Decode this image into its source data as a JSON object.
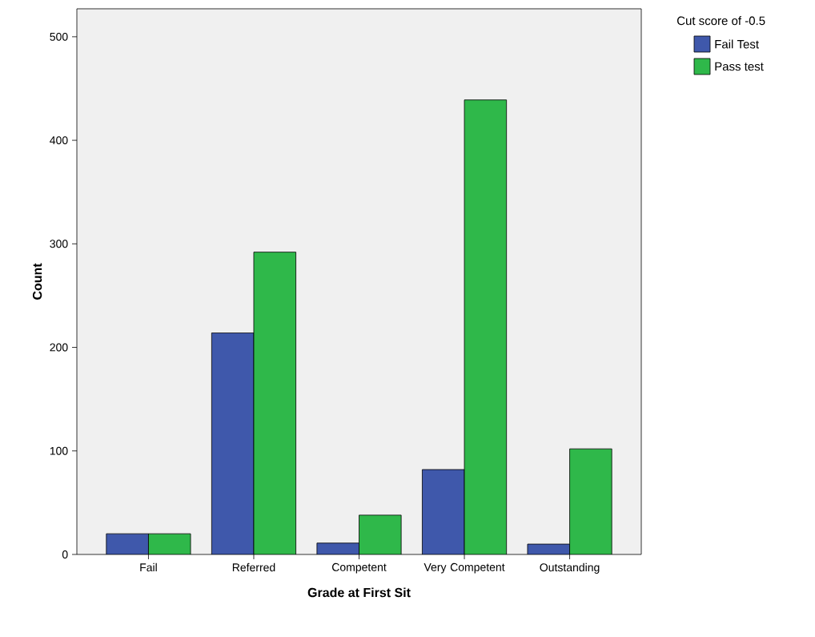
{
  "chart_data": {
    "type": "bar",
    "xlabel": "Grade at First Sit",
    "ylabel": "Count",
    "legend_title": "Cut score of -0.5",
    "legend": "top right",
    "categories": [
      "Fail",
      "Referred",
      "Competent",
      "Very Competent",
      "Outstanding"
    ],
    "series": [
      {
        "name": "Fail Test",
        "color": "#3f58ab",
        "values": [
          20,
          214,
          11,
          82,
          10
        ]
      },
      {
        "name": "Pass test",
        "color": "#2fb84a",
        "values": [
          20,
          292,
          38,
          439,
          102
        ]
      }
    ],
    "ylim": [
      0,
      527
    ],
    "yticks": [
      0,
      100,
      200,
      300,
      400,
      500
    ],
    "grid": false
  }
}
